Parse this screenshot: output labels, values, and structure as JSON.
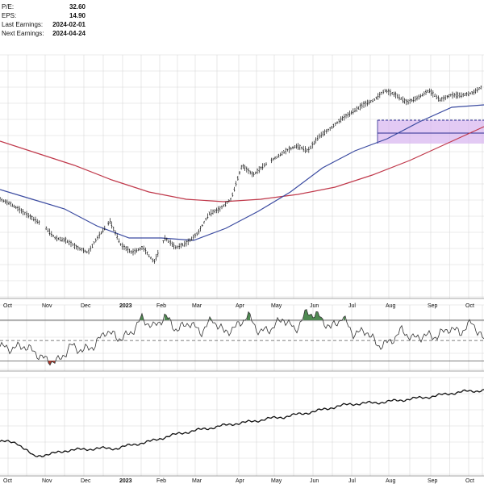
{
  "fundamentals": [
    {
      "label": "P/E:",
      "value": "32.60"
    },
    {
      "label": "EPS:",
      "value": "14.90"
    },
    {
      "label": "Last Earnings:",
      "value": "2024-02-01"
    },
    {
      "label": "Next Earnings:",
      "value": "2024-04-24"
    }
  ],
  "colors": {
    "price_bars": "#111111",
    "ma_short": "#3a4aa0",
    "ma_long": "#c0394b",
    "consolidation_box": "#d9b8f0",
    "consolidation_border": "#2a2a90",
    "rsi_line": "#333333",
    "rsi_overbought_fill": "#4f8a52",
    "rsi_oversold_fill": "#b03a2e",
    "lower_line": "#111111",
    "grid": "#d8d8d8"
  },
  "chart_data": [
    {
      "type": "line",
      "panel": "price",
      "x_ticks": [
        "Oct",
        "Nov",
        "Dec",
        "2023",
        "Feb",
        "Mar",
        "Apr",
        "May",
        "Jun",
        "Jul",
        "Aug",
        "Sep",
        "Oct"
      ],
      "series": [
        {
          "values": [
            0.66,
            0.64,
            0.61,
            0.58,
            0.55,
            0.5,
            0.49,
            0.46,
            0.44,
            0.51,
            0.57,
            0.47,
            0.44,
            0.46,
            0.4,
            0.5,
            0.46,
            0.48,
            0.52,
            0.6,
            0.62,
            0.66,
            0.8,
            0.76,
            0.8,
            0.83,
            0.86,
            0.88,
            0.86,
            0.92,
            0.95,
            0.99,
            1.02,
            1.05,
            1.07,
            1.11,
            1.09,
            1.06,
            1.08,
            1.11,
            1.07,
            1.09,
            1.09,
            1.1,
            1.13
          ]
        },
        {
          "values": [
            0.7,
            0.66,
            0.62,
            0.55,
            0.5,
            0.5,
            0.49,
            0.54,
            0.61,
            0.69,
            0.79,
            0.86,
            0.91,
            0.98,
            1.04,
            1.05
          ]
        },
        {
          "values": [
            0.9,
            0.85,
            0.8,
            0.74,
            0.69,
            0.66,
            0.65,
            0.66,
            0.68,
            0.71,
            0.76,
            0.82,
            0.89,
            0.96
          ]
        }
      ],
      "consolidation_zone": {
        "x_range": [
          "Jul",
          "Oct"
        ]
      }
    },
    {
      "type": "line",
      "panel": "indicator",
      "x_ticks": [
        "Oct",
        "Nov",
        "Dec",
        "2023",
        "Feb",
        "Mar",
        "Apr",
        "May",
        "Jun",
        "Jul",
        "Aug",
        "Sep",
        "Oct"
      ],
      "reference_lines": [
        70,
        50,
        30
      ],
      "ylim": [
        20,
        85
      ],
      "series": [
        {
          "values": [
            44,
            42,
            45,
            38,
            30,
            30,
            45,
            40,
            45,
            60,
            52,
            56,
            72,
            63,
            74,
            60,
            68,
            58,
            71,
            58,
            63,
            75,
            58,
            62,
            72,
            60,
            78,
            74,
            62,
            73,
            56,
            60,
            45,
            48,
            60,
            52,
            55,
            54,
            62,
            58,
            68,
            50
          ]
        }
      ]
    },
    {
      "type": "line",
      "panel": "lower",
      "x_ticks": [
        "Oct",
        "Nov",
        "Dec",
        "2023",
        "Feb",
        "Mar",
        "Apr",
        "May",
        "Jun",
        "Jul",
        "Aug",
        "Sep",
        "Oct"
      ],
      "series": [
        {
          "values": [
            0.35,
            0.34,
            0.2,
            0.22,
            0.26,
            0.27,
            0.28,
            0.28,
            0.32,
            0.35,
            0.4,
            0.44,
            0.47,
            0.5,
            0.53,
            0.55,
            0.58,
            0.6,
            0.63,
            0.66,
            0.7,
            0.73,
            0.74,
            0.75,
            0.77,
            0.79,
            0.81,
            0.84,
            0.86,
            0.87
          ]
        }
      ]
    }
  ]
}
